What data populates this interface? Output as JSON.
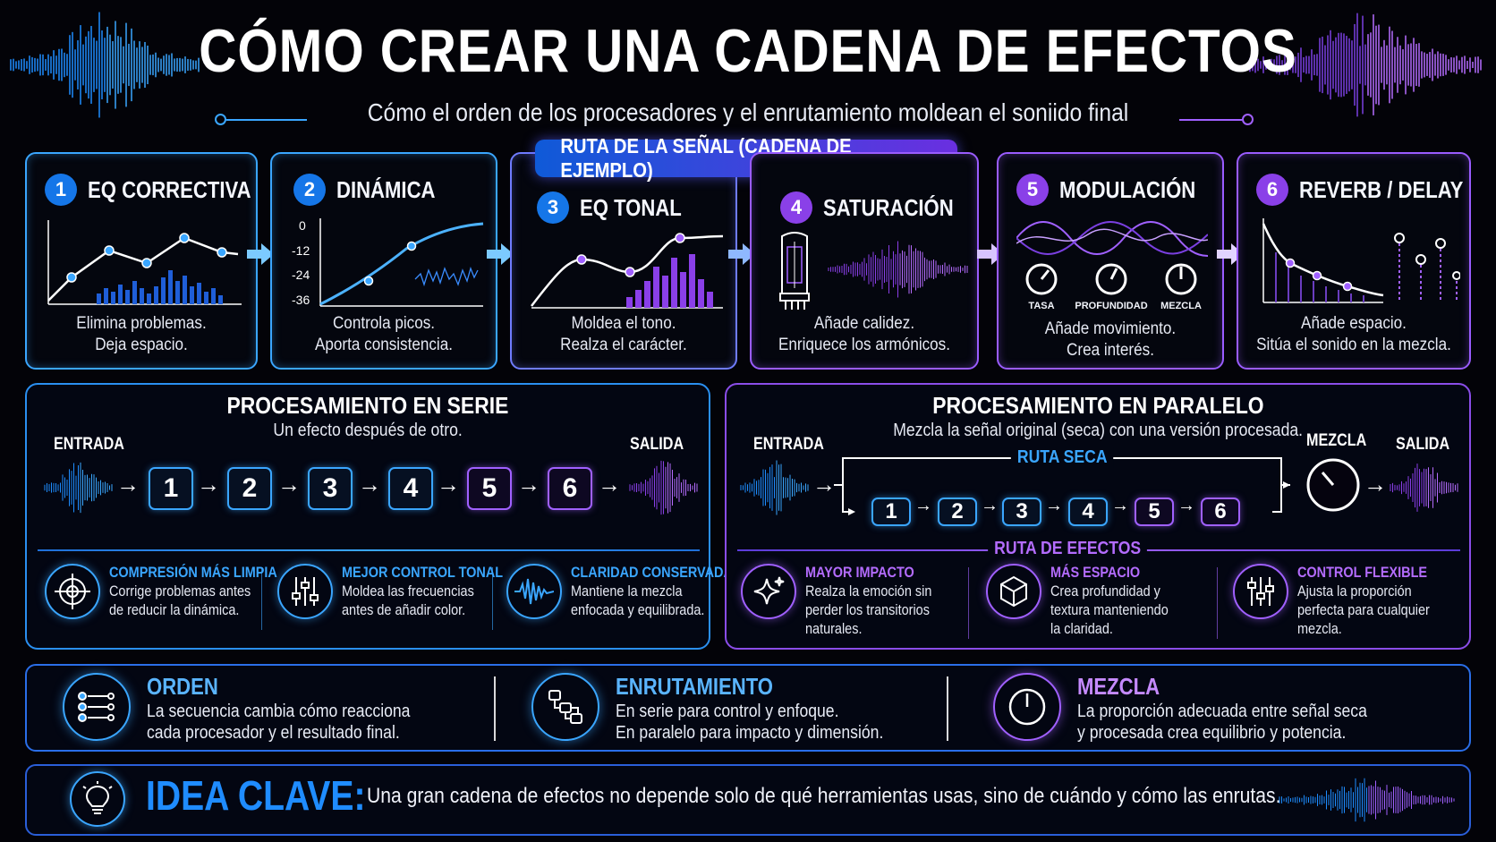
{
  "header": {
    "title": "CÓMO CREAR UNA CADENA DE EFECTOS",
    "subtitle": "Cómo el orden de los procesadores y el enrutamiento moldean el soniido final"
  },
  "route_badge": "RUTA DE LA SEÑAL (CADENA DE EJEMPLO)",
  "steps": [
    {
      "num": "1",
      "title": "EQ CORRECTIVA",
      "desc1": "Elimina problemas.",
      "desc2": "Deja espacio."
    },
    {
      "num": "2",
      "title": "DINÁMICA",
      "desc1": "Controla picos.",
      "desc2": "Aporta consistencia.",
      "axis": [
        "0",
        "-12",
        "-24",
        "-36"
      ]
    },
    {
      "num": "3",
      "title": "EQ TONAL",
      "desc1": "Moldea el tono.",
      "desc2": "Realza el carácter."
    },
    {
      "num": "4",
      "title": "SATURACIÓN",
      "desc1": "Añade calidez.",
      "desc2": "Enriquece los armónicos."
    },
    {
      "num": "5",
      "title": "MODULACIÓN",
      "desc1": "Añade movimiento.",
      "desc2": "Crea interés.",
      "knobs": [
        "TASA",
        "PROFUNDIDAD",
        "MEZCLA"
      ]
    },
    {
      "num": "6",
      "title": "REVERB / DELAY",
      "desc1": "Añade espacio.",
      "desc2": "Sitúa el sonido en la mezcla."
    }
  ],
  "serie": {
    "title": "PROCESAMIENTO EN SERIE",
    "subtitle": "Un efecto después de otro.",
    "input": "ENTRADA",
    "output": "SALIDA",
    "boxes": [
      "1",
      "2",
      "3",
      "4",
      "5",
      "6"
    ],
    "benefits": [
      {
        "title": "COMPRESIÓN MÁS LIMPIA",
        "l1": "Corrige problemas antes",
        "l2": "de reducir la dinámica.",
        "icon": "target-icon"
      },
      {
        "title": "MEJOR CONTROL TONAL",
        "l1": "Moldea las frecuencias",
        "l2": "antes de añadir color.",
        "icon": "sliders-icon"
      },
      {
        "title": "CLARIDAD CONSERVADA",
        "l1": "Mantiene la mezcla",
        "l2": "enfocada y equilibrada.",
        "icon": "waveform-icon"
      }
    ]
  },
  "paralelo": {
    "title": "PROCESAMIENTO EN PARALELO",
    "subtitle": "Mezcla la señal original (seca) con una versión procesada.",
    "input": "ENTRADA",
    "mix": "MEZCLA",
    "output": "SALIDA",
    "dry": "RUTA SECA",
    "fx": "RUTA DE EFECTOS",
    "boxes": [
      "1",
      "2",
      "3",
      "4",
      "5",
      "6"
    ],
    "benefits": [
      {
        "title": "MAYOR IMPACTO",
        "l1": "Realza la emoción sin",
        "l2": "perder los transitorios",
        "l3": "naturales.",
        "icon": "sparkle-icon"
      },
      {
        "title": "MÁS ESPACIO",
        "l1": "Crea profundidad y",
        "l2": "textura manteniendo",
        "l3": "la claridad.",
        "icon": "cube-icon"
      },
      {
        "title": "CONTROL FLEXIBLE",
        "l1": "Ajusta la proporción",
        "l2": "perfecta para cualquier",
        "l3": "mezcla.",
        "icon": "sliders-icon"
      }
    ]
  },
  "keys": [
    {
      "title": "ORDEN",
      "l1": "La secuencia cambia cómo reacciona",
      "l2": "cada procesador y el resultado final.",
      "icon": "list-order-icon"
    },
    {
      "title": "ENRUTAMIENTO",
      "l1": "En serie para control y enfoque.",
      "l2": "En paralelo para impacto y dimensión.",
      "icon": "routing-icon"
    },
    {
      "title": "MEZCLA",
      "l1": "La proporción adecuada entre señal seca",
      "l2": "y procesada crea equilibrio y potencia.",
      "icon": "knob-icon"
    }
  ],
  "idea": {
    "label": "IDEA CLAVE:",
    "text": "Una gran cadena de efectos no depende solo de qué herramientas usas, sino de cuándo y cómo las enrutas.",
    "icon": "lightbulb-icon"
  },
  "colors": {
    "blue": "#3aa6ff",
    "purple": "#a060ff",
    "background": "#030308"
  }
}
